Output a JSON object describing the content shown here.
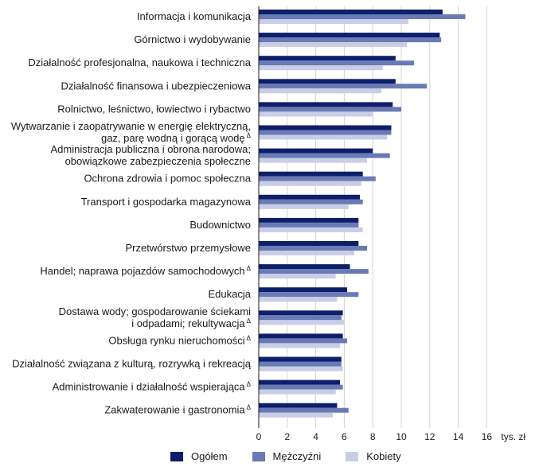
{
  "chart_data": {
    "type": "bar",
    "orientation": "horizontal",
    "unit_label": "tys. zł",
    "xlim": [
      0,
      16
    ],
    "xticks": [
      "0",
      "2",
      "4",
      "6",
      "8",
      "10",
      "12",
      "14",
      "16"
    ],
    "grid": true,
    "legend_position": "bottom",
    "categories": [
      [
        "Informacja i komunikacja"
      ],
      [
        "Górnictwo i wydobywanie"
      ],
      [
        "Działalność  profesjonalna, naukowa i techniczna"
      ],
      [
        "Działalność finansowa i ubezpieczeniowa"
      ],
      [
        "Rolnictwo, leśnictwo, łowiectwo i rybactwo"
      ],
      [
        "Wytwarzanie i zaopatrywanie w energię elektryczną,",
        "gaz, parę wodną i gorącą wodę"
      ],
      [
        "Administracja publiczna i obrona narodowa;",
        "obowiązkowe zabezpieczenia społeczne"
      ],
      [
        "Ochrona zdrowia i pomoc społeczna"
      ],
      [
        "Transport i gospodarka magazynowa"
      ],
      [
        "Budownictwo"
      ],
      [
        "Przetwórstwo przemysłowe"
      ],
      [
        "Handel; naprawa pojazdów samochodowych"
      ],
      [
        "Edukacja"
      ],
      [
        "Dostawa wody; gospodarowanie ściekami",
        "i odpadami; rekultywacja"
      ],
      [
        "Obsługa rynku nieruchomości"
      ],
      [
        "Działalność związana z kulturą, rozrywką i rekreacją"
      ],
      [
        "Administrowanie i działalność wspierająca"
      ],
      [
        "Zakwaterowanie i gastronomia"
      ]
    ],
    "delta_marker": "Δ",
    "delta_flags": [
      false,
      false,
      false,
      false,
      false,
      true,
      false,
      false,
      false,
      false,
      false,
      true,
      false,
      true,
      true,
      false,
      true,
      true
    ],
    "series": [
      {
        "name": "Ogółem",
        "color": "#0d1f6b",
        "values": [
          12.9,
          12.7,
          9.6,
          9.6,
          9.4,
          9.3,
          8.0,
          7.3,
          7.1,
          7.0,
          7.0,
          6.4,
          6.2,
          5.9,
          5.9,
          5.8,
          5.7,
          5.5
        ]
      },
      {
        "name": "Mężczyźni",
        "color": "#6a7ab5",
        "values": [
          14.5,
          12.8,
          10.9,
          11.8,
          10.0,
          9.3,
          9.2,
          8.2,
          7.3,
          7.0,
          7.6,
          7.7,
          7.0,
          5.8,
          6.2,
          5.8,
          5.9,
          6.3
        ]
      },
      {
        "name": "Kobiety",
        "color": "#c9cde6",
        "values": [
          10.5,
          10.4,
          8.7,
          8.6,
          8.0,
          9.0,
          7.6,
          7.2,
          6.3,
          7.3,
          6.7,
          5.4,
          5.5,
          6.0,
          5.7,
          5.9,
          5.4,
          5.2
        ]
      }
    ]
  }
}
